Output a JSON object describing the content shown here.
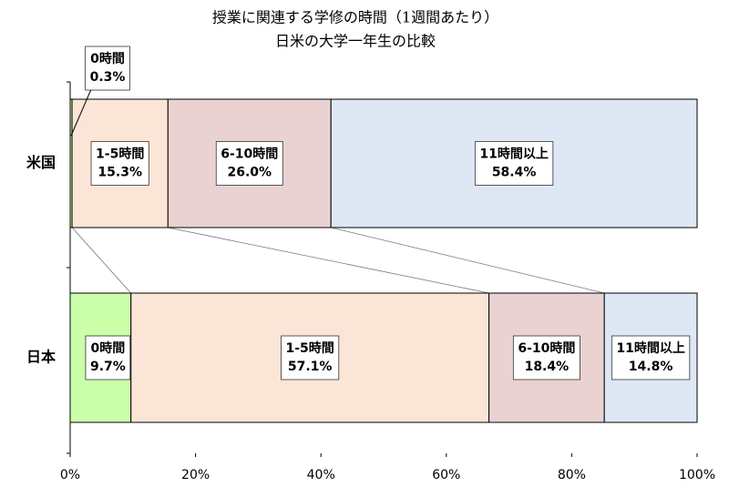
{
  "chart_data": {
    "type": "stacked-barh",
    "title": "授業に関連する学修の時間（1週間あたり）",
    "subtitle": "日米の大学一年生の比較",
    "categories": [
      "米国",
      "日本"
    ],
    "series": [
      {
        "name": "0時間",
        "color": "#ccffaa",
        "values": [
          0.3,
          9.7
        ],
        "value_labels": [
          "0.3%",
          "9.7%"
        ]
      },
      {
        "name": "1-5時間",
        "color": "#fbe5d6",
        "values": [
          15.3,
          57.1
        ],
        "value_labels": [
          "15.3%",
          "57.1%"
        ]
      },
      {
        "name": "6-10時間",
        "color": "#ead2d2",
        "values": [
          26.0,
          18.4
        ],
        "value_labels": [
          "26.0%",
          "18.4%"
        ]
      },
      {
        "name": "11時間以上",
        "color": "#dee8f4",
        "values": [
          58.4,
          14.8
        ],
        "value_labels": [
          "58.4%",
          "14.8%"
        ]
      }
    ],
    "xlim": [
      0,
      100
    ],
    "xticks": [
      {
        "value": 0,
        "label": "0%"
      },
      {
        "value": 20,
        "label": "20%"
      },
      {
        "value": 40,
        "label": "40%"
      },
      {
        "value": 60,
        "label": "60%"
      },
      {
        "value": 80,
        "label": "80%"
      },
      {
        "value": 100,
        "label": "100%"
      }
    ]
  }
}
